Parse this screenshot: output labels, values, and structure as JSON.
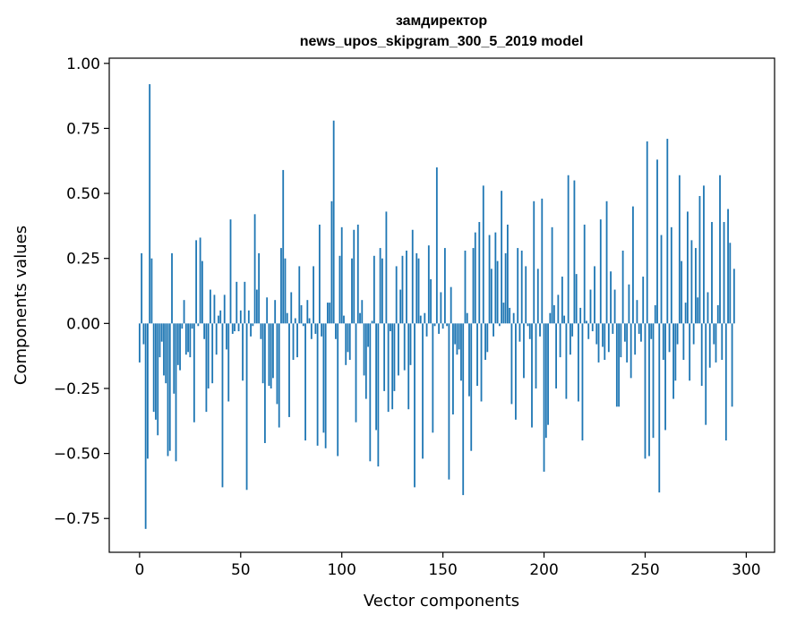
{
  "chart_data": {
    "type": "bar",
    "title_line1": "замдиректор",
    "title_line2": "news_upos_skipgram_300_5_2019 model",
    "xlabel": "Vector components",
    "ylabel": "Components values",
    "xlim": [
      -15,
      314
    ],
    "ylim": [
      -0.88,
      1.02
    ],
    "xticks": [
      0,
      50,
      100,
      150,
      200,
      250,
      300
    ],
    "yticks": [
      -0.75,
      -0.5,
      -0.25,
      0.0,
      0.25,
      0.5,
      0.75,
      1.0
    ],
    "xtick_labels": [
      "0",
      "50",
      "100",
      "150",
      "200",
      "250",
      "300"
    ],
    "ytick_labels": [
      "−0.75",
      "−0.50",
      "−0.25",
      "0.00",
      "0.25",
      "0.50",
      "0.75",
      "1.00"
    ],
    "grid": false,
    "bar_color": "#1f77b4",
    "values": [
      -0.15,
      0.27,
      -0.08,
      -0.79,
      -0.52,
      0.92,
      0.25,
      -0.34,
      -0.37,
      -0.43,
      -0.13,
      -0.07,
      -0.2,
      -0.23,
      -0.51,
      -0.49,
      0.27,
      -0.27,
      -0.53,
      -0.16,
      -0.18,
      -0.02,
      0.09,
      -0.12,
      -0.11,
      -0.13,
      -0.02,
      -0.38,
      0.32,
      -0.01,
      0.33,
      0.24,
      -0.06,
      -0.34,
      -0.25,
      0.13,
      -0.23,
      0.11,
      -0.12,
      0.03,
      0.05,
      -0.63,
      0.11,
      -0.1,
      -0.3,
      0.4,
      -0.04,
      -0.03,
      0.16,
      -0.03,
      0.05,
      -0.22,
      0.16,
      -0.64,
      0.05,
      -0.05,
      -0.01,
      0.42,
      0.13,
      0.27,
      -0.06,
      -0.23,
      -0.46,
      0.1,
      -0.24,
      -0.25,
      -0.21,
      0.09,
      -0.31,
      -0.4,
      0.29,
      0.59,
      0.25,
      0.04,
      -0.36,
      0.12,
      -0.14,
      0.02,
      -0.13,
      0.22,
      0.07,
      -0.01,
      -0.45,
      0.09,
      0.02,
      -0.06,
      0.22,
      -0.04,
      -0.47,
      0.38,
      -0.05,
      -0.42,
      -0.48,
      0.08,
      0.08,
      0.47,
      0.78,
      -0.06,
      -0.51,
      0.26,
      0.37,
      0.03,
      -0.16,
      -0.11,
      -0.14,
      0.25,
      0.36,
      -0.38,
      0.38,
      0.04,
      0.09,
      -0.2,
      -0.29,
      -0.09,
      -0.53,
      0.01,
      0.26,
      -0.41,
      -0.55,
      0.29,
      0.25,
      -0.26,
      0.43,
      -0.34,
      -0.03,
      -0.33,
      -0.26,
      0.22,
      -0.2,
      0.13,
      0.26,
      -0.18,
      0.28,
      -0.33,
      -0.16,
      0.36,
      -0.63,
      0.27,
      0.25,
      0.03,
      -0.52,
      0.04,
      -0.05,
      0.3,
      0.17,
      -0.42,
      -0.01,
      0.6,
      -0.04,
      0.12,
      -0.02,
      0.29,
      -0.01,
      -0.6,
      0.14,
      -0.35,
      -0.08,
      -0.12,
      -0.1,
      -0.22,
      -0.66,
      0.28,
      0.04,
      -0.28,
      -0.49,
      0.29,
      0.35,
      -0.24,
      0.39,
      -0.3,
      0.53,
      -0.14,
      -0.11,
      0.34,
      0.21,
      -0.05,
      0.35,
      0.24,
      -0.01,
      0.51,
      0.08,
      0.27,
      0.38,
      0.06,
      -0.31,
      0.04,
      -0.37,
      0.29,
      -0.07,
      0.28,
      -0.21,
      0.22,
      -0.01,
      -0.06,
      -0.4,
      0.47,
      -0.25,
      0.21,
      -0.05,
      0.48,
      -0.57,
      -0.44,
      -0.39,
      0.04,
      0.37,
      0.07,
      -0.25,
      0.11,
      -0.13,
      0.18,
      0.03,
      -0.29,
      0.57,
      -0.12,
      -0.05,
      0.55,
      0.19,
      -0.3,
      0.06,
      -0.45,
      0.38,
      0.01,
      -0.06,
      0.13,
      -0.03,
      0.22,
      -0.08,
      -0.15,
      0.4,
      -0.09,
      -0.14,
      0.47,
      -0.11,
      0.2,
      -0.04,
      0.13,
      -0.32,
      -0.32,
      -0.13,
      0.28,
      -0.07,
      -0.15,
      0.15,
      -0.21,
      0.45,
      -0.12,
      0.09,
      -0.04,
      -0.07,
      0.18,
      -0.52,
      0.7,
      -0.51,
      -0.06,
      -0.44,
      0.07,
      0.63,
      -0.65,
      0.34,
      -0.14,
      -0.41,
      0.71,
      -0.11,
      0.37,
      -0.29,
      -0.22,
      -0.08,
      0.57,
      0.24,
      -0.14,
      0.08,
      0.43,
      -0.22,
      0.32,
      -0.08,
      0.29,
      0.1,
      0.49,
      -0.24,
      0.53,
      -0.39,
      0.12,
      -0.17,
      0.39,
      -0.08,
      -0.15,
      0.07,
      0.57,
      -0.14,
      0.39,
      -0.45,
      0.44,
      0.31,
      -0.32,
      0.21
    ]
  }
}
